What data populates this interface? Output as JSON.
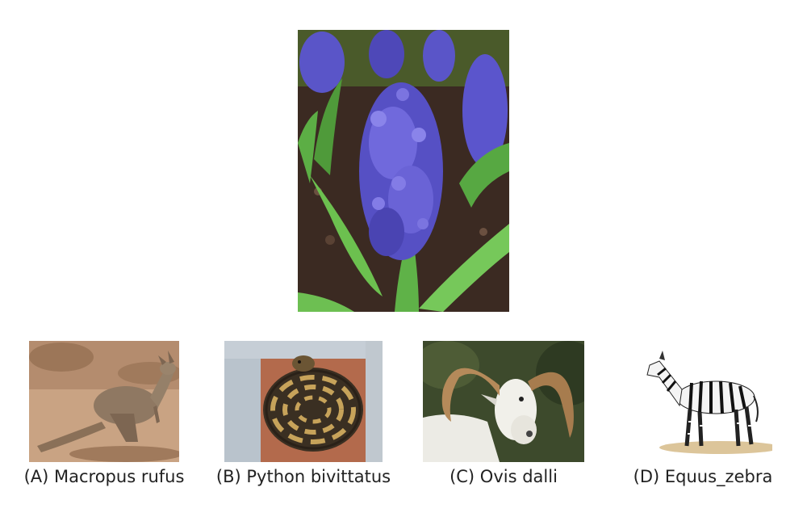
{
  "question_image": {
    "subject": "purple hyacinth flowers with green leaves",
    "icon": "hyacinth-photo"
  },
  "options": [
    {
      "caption": "(A) Macropus rufus",
      "icon": "kangaroo-photo"
    },
    {
      "caption": "(B) Python bivittatus",
      "icon": "python-photo"
    },
    {
      "caption": "(C) Ovis dalli",
      "icon": "ram-photo"
    },
    {
      "caption": "(D) Equus_zebra",
      "icon": "zebra-illustration"
    }
  ]
}
